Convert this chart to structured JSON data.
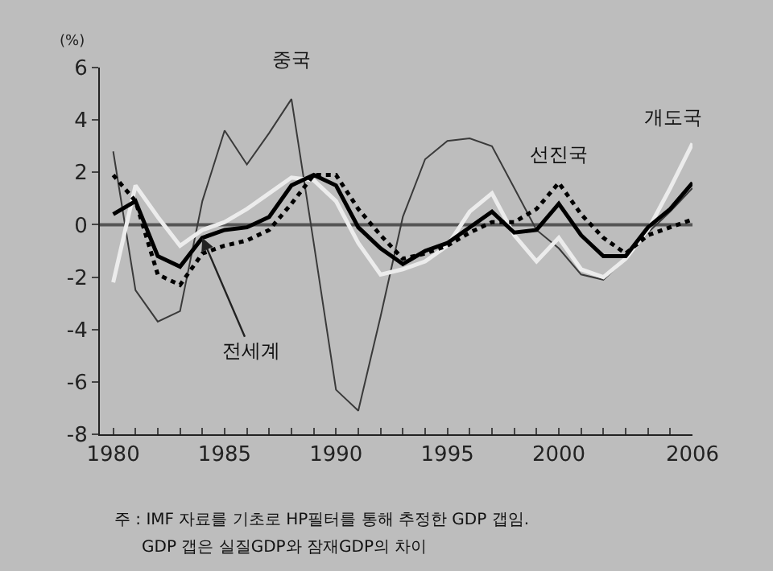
{
  "chart_data": {
    "type": "line",
    "ylabel": "(%)",
    "x": [
      1980,
      1981,
      1982,
      1983,
      1984,
      1985,
      1986,
      1987,
      1988,
      1989,
      1990,
      1991,
      1992,
      1993,
      1994,
      1995,
      1996,
      1997,
      1998,
      1999,
      2000,
      2001,
      2002,
      2003,
      2004,
      2005,
      2006
    ],
    "series": [
      {
        "name": "중국",
        "color": "#3a3a3a",
        "line_style": "solid",
        "values": [
          2.8,
          -2.5,
          -3.7,
          -3.3,
          0.9,
          3.6,
          2.3,
          3.5,
          4.8,
          -0.7,
          -6.3,
          -7.1,
          -3.5,
          0.3,
          2.5,
          3.2,
          3.3,
          3.0,
          1.4,
          -0.2,
          -0.9,
          -1.9,
          -2.1,
          -1.3,
          -0.3,
          0.5,
          1.4
        ]
      },
      {
        "name": "전세계",
        "color": "#000000",
        "line_style": "solid",
        "values": [
          0.4,
          0.9,
          -1.2,
          -1.6,
          -0.5,
          -0.2,
          -0.1,
          0.3,
          1.5,
          1.9,
          1.5,
          -0.1,
          -0.9,
          -1.5,
          -1.0,
          -0.7,
          -0.1,
          0.5,
          -0.3,
          -0.2,
          0.8,
          -0.4,
          -1.2,
          -1.2,
          -0.1,
          0.6,
          1.6
        ]
      },
      {
        "name": "선진국",
        "color": "#000000",
        "line_style": "dotted",
        "values": [
          1.9,
          0.9,
          -1.9,
          -2.3,
          -1.1,
          -0.8,
          -0.6,
          -0.2,
          0.8,
          1.9,
          1.9,
          0.6,
          -0.4,
          -1.3,
          -1.1,
          -0.8,
          -0.3,
          0.1,
          0.1,
          0.6,
          1.6,
          0.4,
          -0.5,
          -1.1,
          -0.4,
          -0.1,
          0.2
        ]
      },
      {
        "name": "개도국",
        "color": "#ececec",
        "line_style": "solid",
        "values": [
          -2.2,
          1.5,
          0.3,
          -0.8,
          -0.2,
          0.1,
          0.6,
          1.2,
          1.8,
          1.7,
          0.9,
          -0.7,
          -1.9,
          -1.7,
          -1.4,
          -0.8,
          0.5,
          1.2,
          -0.4,
          -1.4,
          -0.5,
          -1.7,
          -2.0,
          -1.3,
          -0.2,
          1.4,
          3.1
        ]
      }
    ],
    "xlim": [
      1979.4,
      2006
    ],
    "xticks": [
      1980,
      {
        "value": 1981,
        "label": null
      },
      {
        "value": 1982,
        "label": null
      },
      {
        "value": 1983,
        "label": null
      },
      {
        "value": 1984,
        "label": null
      },
      1985,
      {
        "value": 1986,
        "label": null
      },
      {
        "value": 1987,
        "label": null
      },
      {
        "value": 1988,
        "label": null
      },
      {
        "value": 1989,
        "label": null
      },
      1990,
      {
        "value": 1991,
        "label": null
      },
      {
        "value": 1992,
        "label": null
      },
      {
        "value": 1993,
        "label": null
      },
      {
        "value": 1994,
        "label": null
      },
      1995,
      {
        "value": 1996,
        "label": null
      },
      {
        "value": 1997,
        "label": null
      },
      {
        "value": 1998,
        "label": null
      },
      {
        "value": 1999,
        "label": null
      },
      2000,
      {
        "value": 2001,
        "label": null
      },
      {
        "value": 2002,
        "label": null
      },
      {
        "value": 2003,
        "label": null
      },
      {
        "value": 2004,
        "label": null
      },
      {
        "value": 2005,
        "label": null
      },
      2006
    ],
    "ylim": [
      -8,
      6
    ],
    "yticks": [
      -8,
      -6,
      -4,
      -2,
      0,
      2,
      4,
      6
    ],
    "ref_lines": [
      {
        "axis": "y",
        "value": 0,
        "color": "#555555"
      }
    ],
    "grid": false,
    "legend": false,
    "marker": "none",
    "annotations": [
      "주 : IMF 자료를 기초로 HP필터를 통해 추정한 GDP 갭임.",
      "GDP 갭은 실질GDP와 잠재GDP의 차이"
    ]
  }
}
